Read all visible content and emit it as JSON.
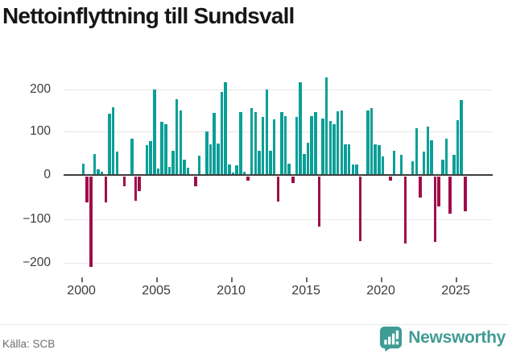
{
  "title": "Nettoinflyttning till Sundsvall",
  "footer": {
    "source": "Källa: SCB",
    "brand": "Newsworthy"
  },
  "colors": {
    "positive_bar": "#0a9f97",
    "negative_bar": "#a00e4a",
    "gridline": "#e7e7e7",
    "zero_axis": "#3f3f3f",
    "brand_teal": "#3f9c94"
  },
  "chart_data": {
    "type": "bar",
    "title": "Nettoinflyttning till Sundsvall",
    "xlabel": "",
    "ylabel": "",
    "frequency": "quarterly",
    "start_year": 2000,
    "start_quarter": 1,
    "end_year": 2025,
    "end_quarter": 3,
    "ylim": [
      -230,
      245
    ],
    "grid": true,
    "legend": false,
    "y_ticks": [
      200,
      100,
      0,
      -100,
      -200
    ],
    "y_tick_labels": [
      "200",
      "100",
      "0",
      "−100",
      "−200"
    ],
    "x_tick_years": [
      2000,
      2005,
      2010,
      2015,
      2020,
      2025
    ],
    "x_tick_labels": [
      "2000",
      "2005",
      "2010",
      "2015",
      "2020",
      "2025"
    ],
    "values": [
      28,
      -60,
      -207,
      49,
      14,
      9,
      -60,
      142,
      156,
      55,
      0,
      -23,
      0,
      85,
      -55,
      -33,
      0,
      70,
      78,
      197,
      17,
      122,
      118,
      20,
      57,
      174,
      148,
      37,
      18,
      0,
      -23,
      45,
      0,
      100,
      72,
      143,
      73,
      190,
      212,
      26,
      7,
      23,
      145,
      9,
      -10,
      154,
      145,
      57,
      133,
      197,
      57,
      128,
      -58,
      145,
      136,
      28,
      -16,
      133,
      212,
      50,
      75,
      136,
      145,
      -114,
      130,
      224,
      125,
      118,
      146,
      149,
      72,
      72,
      25,
      25,
      -147,
      0,
      148,
      154,
      72,
      70,
      43,
      0,
      -9,
      57,
      0,
      47,
      -153,
      0,
      32,
      108,
      -48,
      54,
      111,
      81,
      -150,
      -69,
      37,
      84,
      -85,
      48,
      127,
      173,
      -79
    ]
  }
}
